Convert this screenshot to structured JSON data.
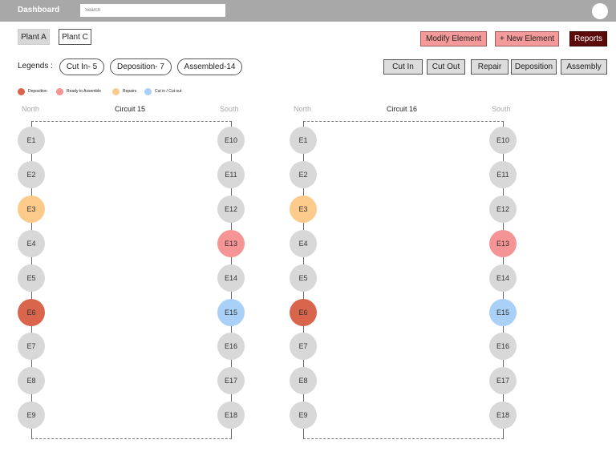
{
  "header": {
    "title": "Dashboard",
    "search_placeholder": "Search"
  },
  "plants": [
    "Plant A",
    "Plant C"
  ],
  "toolbar": {
    "modify": "Modify Element",
    "new": "+ New Element",
    "reports": "Reports"
  },
  "legends": {
    "label": "Legends :",
    "pills": [
      "Cut In- 5",
      "Deposition- 7",
      "Assembled-14"
    ]
  },
  "actions": [
    "Cut In",
    "Cut Out",
    "Repair",
    "Deposition",
    "Assembly"
  ],
  "key": [
    {
      "label": "Deposition",
      "color": "#d9654c"
    },
    {
      "label": "Ready to Assemble",
      "color": "#f49494"
    },
    {
      "label": "Repairs",
      "color": "#fccb8c"
    },
    {
      "label": "Cut in / Cut out",
      "color": "#a9d1f7"
    }
  ],
  "colors": {
    "default": "#d8d8d8",
    "deposition": "#d9654c",
    "ready": "#f49494",
    "repair": "#fccb8c",
    "cut": "#a9d1f7"
  },
  "circuits": [
    {
      "title": "Circuit 15",
      "north": "North",
      "south": "South",
      "left": [
        {
          "label": "E1",
          "status": "default"
        },
        {
          "label": "E2",
          "status": "default"
        },
        {
          "label": "E3",
          "status": "repair"
        },
        {
          "label": "E4",
          "status": "default"
        },
        {
          "label": "E5",
          "status": "default"
        },
        {
          "label": "E6",
          "status": "deposition"
        },
        {
          "label": "E7",
          "status": "default"
        },
        {
          "label": "E8",
          "status": "default"
        },
        {
          "label": "E9",
          "status": "default"
        }
      ],
      "right": [
        {
          "label": "E10",
          "status": "default"
        },
        {
          "label": "E11",
          "status": "default"
        },
        {
          "label": "E12",
          "status": "default"
        },
        {
          "label": "E13",
          "status": "ready"
        },
        {
          "label": "E14",
          "status": "default"
        },
        {
          "label": "E15",
          "status": "cut"
        },
        {
          "label": "E16",
          "status": "default"
        },
        {
          "label": "E17",
          "status": "default"
        },
        {
          "label": "E18",
          "status": "default"
        }
      ]
    },
    {
      "title": "Circuit 16",
      "north": "North",
      "south": "South",
      "left": [
        {
          "label": "E1",
          "status": "default"
        },
        {
          "label": "E2",
          "status": "default"
        },
        {
          "label": "E3",
          "status": "repair"
        },
        {
          "label": "E4",
          "status": "default"
        },
        {
          "label": "E5",
          "status": "default"
        },
        {
          "label": "E6",
          "status": "deposition"
        },
        {
          "label": "E7",
          "status": "default"
        },
        {
          "label": "E8",
          "status": "default"
        },
        {
          "label": "E9",
          "status": "default"
        }
      ],
      "right": [
        {
          "label": "E10",
          "status": "default"
        },
        {
          "label": "E11",
          "status": "default"
        },
        {
          "label": "E12",
          "status": "default"
        },
        {
          "label": "E13",
          "status": "ready"
        },
        {
          "label": "E14",
          "status": "default"
        },
        {
          "label": "E15",
          "status": "cut"
        },
        {
          "label": "E16",
          "status": "default"
        },
        {
          "label": "E17",
          "status": "default"
        },
        {
          "label": "E18",
          "status": "default"
        }
      ]
    }
  ]
}
